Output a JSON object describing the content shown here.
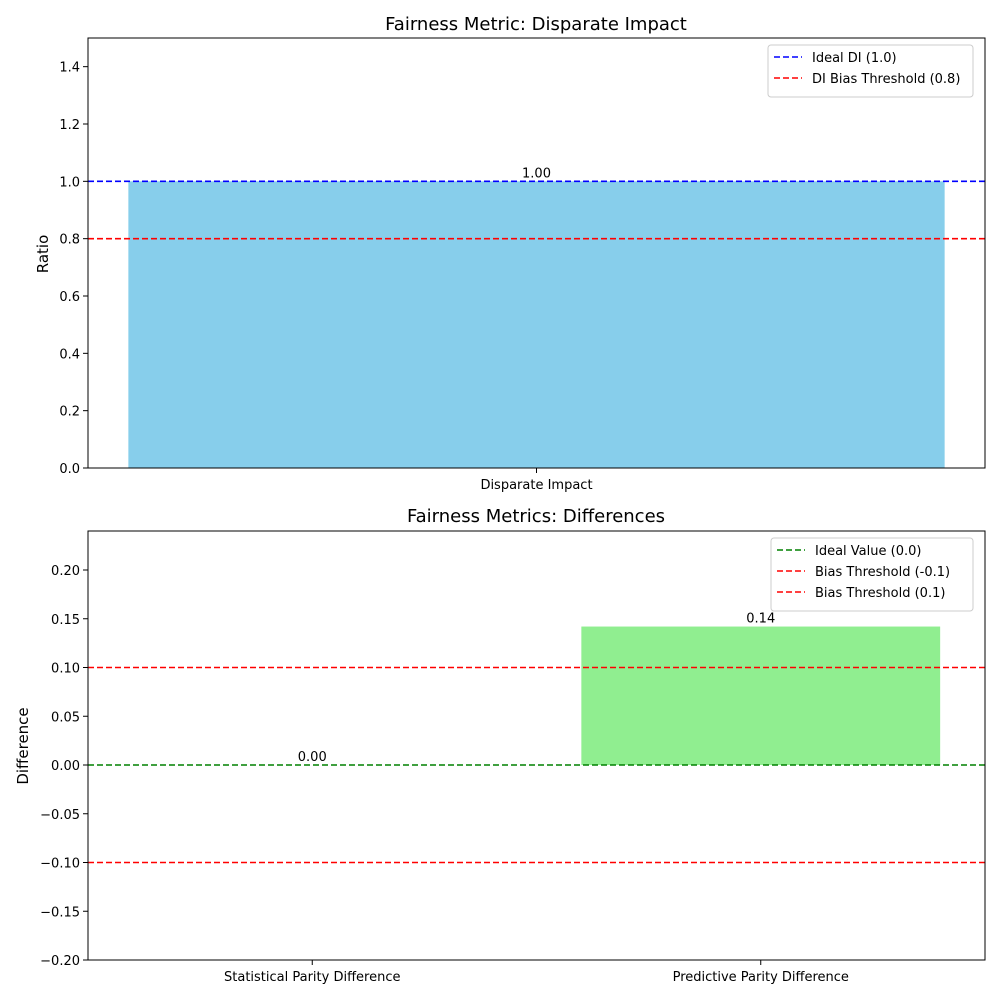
{
  "chart_data": [
    {
      "type": "bar",
      "title": "Fairness Metric: Disparate Impact",
      "xlabel": "",
      "ylabel": "Ratio",
      "ylim": [
        0,
        1.5
      ],
      "yticks": [
        0.0,
        0.2,
        0.4,
        0.6,
        0.8,
        1.0,
        1.2,
        1.4
      ],
      "tick_decimals": 1,
      "categories": [
        "Disparate Impact"
      ],
      "values": [
        1.0
      ],
      "bar_labels": [
        "1.00"
      ],
      "bar_color": "#87CEEB",
      "reference_lines": [
        {
          "label": "Ideal DI (1.0)",
          "y": 1.0,
          "color": "#0000FF",
          "style": "dashed"
        },
        {
          "label": "DI Bias Threshold (0.8)",
          "y": 0.8,
          "color": "#FF0000",
          "style": "dashed"
        }
      ],
      "legend": "top-right",
      "grid": false
    },
    {
      "type": "bar",
      "title": "Fairness Metrics: Differences",
      "xlabel": "",
      "ylabel": "Difference",
      "ylim": [
        -0.2,
        0.24
      ],
      "yticks": [
        -0.2,
        -0.15,
        -0.1,
        -0.05,
        0.0,
        0.05,
        0.1,
        0.15,
        0.2
      ],
      "tick_decimals": 2,
      "categories": [
        "Statistical Parity Difference",
        "Predictive Parity Difference"
      ],
      "values": [
        0.0,
        0.142
      ],
      "bar_labels": [
        "0.00",
        "0.14"
      ],
      "bar_color": "#90EE90",
      "reference_lines": [
        {
          "label": "Ideal Value (0.0)",
          "y": 0.0,
          "color": "#008000",
          "style": "dashed"
        },
        {
          "label": "Bias Threshold (-0.1)",
          "y": -0.1,
          "color": "#FF0000",
          "style": "dashed"
        },
        {
          "label": "Bias Threshold (0.1)",
          "y": 0.1,
          "color": "#FF0000",
          "style": "dashed"
        }
      ],
      "legend": "top-right",
      "grid": false
    }
  ]
}
